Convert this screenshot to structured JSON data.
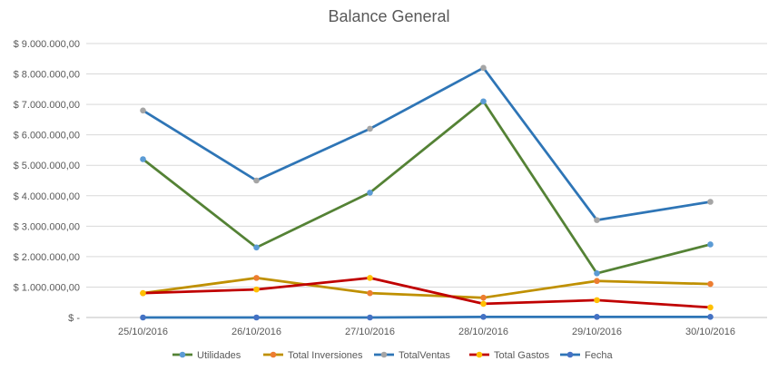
{
  "chart_data": {
    "type": "line",
    "title": "Balance General",
    "xlabel": "",
    "ylabel": "",
    "categories": [
      "25/10/2016",
      "26/10/2016",
      "27/10/2016",
      "28/10/2016",
      "29/10/2016",
      "30/10/2016"
    ],
    "y_ticks": [
      "$ -",
      "$ 1.000.000,00",
      "$ 2.000.000,00",
      "$ 3.000.000,00",
      "$ 4.000.000,00",
      "$ 5.000.000,00",
      "$ 6.000.000,00",
      "$ 7.000.000,00",
      "$ 8.000.000,00",
      "$ 9.000.000,00"
    ],
    "ylim": [
      0,
      9000000
    ],
    "grid": true,
    "legend_position": "bottom",
    "series": [
      {
        "name": "Utilidades",
        "color": "#548235",
        "marker_color": "#5B9BD5",
        "values": [
          5200000,
          2300000,
          4100000,
          7100000,
          1450000,
          2400000
        ]
      },
      {
        "name": "Total Inversiones",
        "color": "#BF9000",
        "marker_color": "#ED7D31",
        "values": [
          800000,
          1300000,
          800000,
          650000,
          1200000,
          1100000
        ]
      },
      {
        "name": "TotalVentas",
        "color": "#2E75B6",
        "marker_color": "#A5A5A5",
        "values": [
          6800000,
          4500000,
          6200000,
          8200000,
          3200000,
          3800000
        ]
      },
      {
        "name": "Total Gastos",
        "color": "#C00000",
        "marker_color": "#FFC000",
        "values": [
          800000,
          920000,
          1300000,
          450000,
          570000,
          330000
        ]
      },
      {
        "name": "Fecha",
        "color": "#2E75B6",
        "marker_color": "#4472C4",
        "values": [
          0,
          0,
          0,
          20000,
          20000,
          20000
        ]
      }
    ]
  }
}
